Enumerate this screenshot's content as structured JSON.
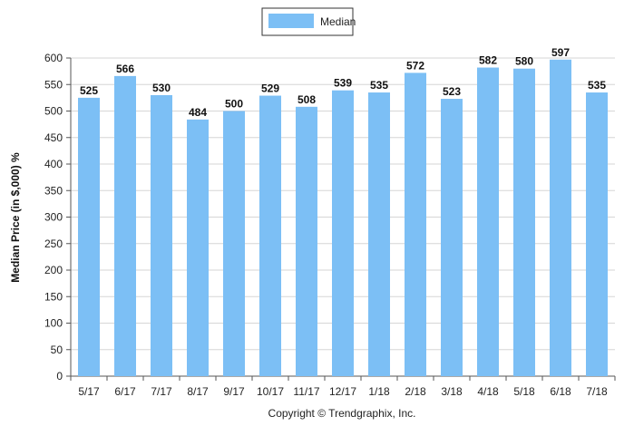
{
  "chart_data": {
    "type": "bar",
    "categories": [
      "5/17",
      "6/17",
      "7/17",
      "8/17",
      "9/17",
      "10/17",
      "11/17",
      "12/17",
      "1/18",
      "2/18",
      "3/18",
      "4/18",
      "5/18",
      "6/18",
      "7/18"
    ],
    "series": [
      {
        "name": "Median",
        "values": [
          525,
          566,
          530,
          484,
          500,
          529,
          508,
          539,
          535,
          572,
          523,
          582,
          580,
          597,
          535
        ],
        "color": "#7cbff5"
      }
    ],
    "ylabel": "Median Price (in $,000) %",
    "xlabel": "",
    "ylim": [
      0,
      600
    ],
    "yticks": [
      0,
      50,
      100,
      150,
      200,
      250,
      300,
      350,
      400,
      450,
      500,
      550,
      600
    ],
    "grid": true,
    "legend_position": "top-center",
    "show_data_labels": true
  },
  "footer": {
    "copyright": "Copyright © Trendgraphix, Inc."
  }
}
